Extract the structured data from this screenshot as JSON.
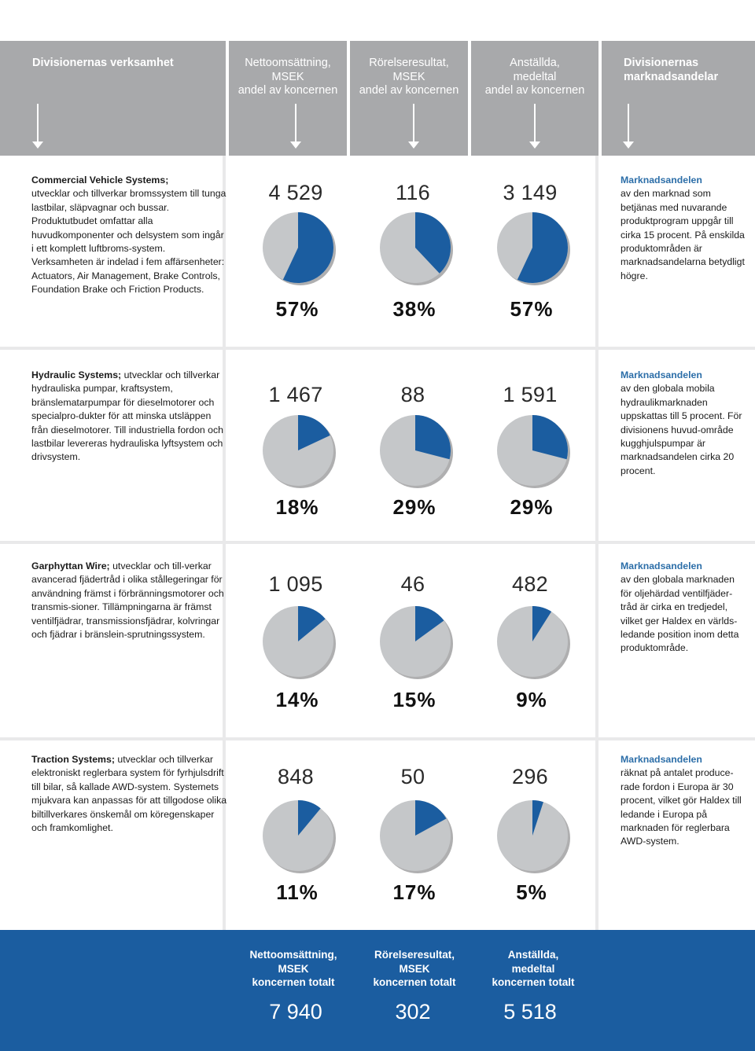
{
  "header": {
    "col1": "Divisionernas verksamhet",
    "col2_l1": "Nettoomsättning,",
    "col2_l2": "MSEK",
    "col2_l3": "andel av koncernen",
    "col3_l1": "Rörelseresultat,",
    "col3_l2": "MSEK",
    "col3_l3": "andel av koncernen",
    "col4_l1": "Anställda,",
    "col4_l2": "medeltal",
    "col4_l3": "andel av koncernen",
    "col5_l1": "Divisionernas",
    "col5_l2": "marknadsandelar"
  },
  "colors": {
    "pie_fill": "#1b5da0",
    "pie_base": "#c5c7c9",
    "header_bg": "#a8a9ab",
    "footer_bg": "#1b5da0",
    "accent_text": "#2c6ea8"
  },
  "divisions": [
    {
      "name": "Commercial Vehicle Systems;",
      "desc": "utvecklar och tillverkar bromssystem till tunga lastbilar, släpvagnar och bussar. Produktutbudet omfattar alla huvudkomponenter och delsystem som ingår i ett komplett luftbroms-system. Verksamheten är indelad i fem affärsenheter: Actuators, Air Management, Brake Controls, Foundation Brake och Friction Products.",
      "values": [
        "4 529",
        "116",
        "3 149"
      ],
      "shares": [
        57,
        38,
        57
      ],
      "share_labels": [
        "57%",
        "38%",
        "57%"
      ],
      "market_head": "Marknadsandelen",
      "market_text": "av den marknad som betjänas med nuvarande produktprogram uppgår till cirka 15 procent. På enskilda produktområden är marknadsandelarna betydligt högre."
    },
    {
      "name": "Hydraulic Systems;",
      "desc": "utvecklar och tillverkar hydrauliska pumpar, kraftsystem, bränslematarpumpar för dieselmotorer och specialpro-dukter för att minska utsläppen från dieselmotorer. Till industriella fordon och lastbilar levereras hydrauliska lyftsystem och drivsystem.",
      "values": [
        "1 467",
        "88",
        "1 591"
      ],
      "shares": [
        18,
        29,
        29
      ],
      "share_labels": [
        "18%",
        "29%",
        "29%"
      ],
      "market_head": "Marknadsandelen",
      "market_text": "av den globala mobila hydraulikmarknaden uppskattas till 5 procent. För divisionens huvud-område kugghjulspumpar är marknadsandelen cirka 20 procent."
    },
    {
      "name": "Garphyttan Wire;",
      "desc": "utvecklar och till-verkar avancerad fjädertråd i olika stållegeringar för användning främst i förbränningsmotorer och transmis-sioner. Tillämpningarna är främst ventilfjädrar, transmissionsfjädrar, kolvringar och fjädrar i bränslein-sprutningssystem.",
      "values": [
        "1 095",
        "46",
        "482"
      ],
      "shares": [
        14,
        15,
        9
      ],
      "share_labels": [
        "14%",
        "15%",
        "9%"
      ],
      "market_head": "Marknadsandelen",
      "market_text": "av den globala marknaden för oljehärdad ventilfjäder-tråd är cirka en tredjedel, vilket ger Haldex en världs-ledande position inom detta produktområde."
    },
    {
      "name": "Traction Systems;",
      "desc": "utvecklar och tillverkar elektroniskt reglerbara system för fyrhjulsdrift till bilar, så kallade AWD-system. Systemets mjukvara kan anpassas för att tillgodose olika biltillverkares önskemål om köregenskaper och framkomlighet.",
      "values": [
        "848",
        "50",
        "296"
      ],
      "shares": [
        11,
        17,
        5
      ],
      "share_labels": [
        "11%",
        "17%",
        "5%"
      ],
      "market_head": "Marknadsandelen",
      "market_text": "räknat på antalet produce-rade fordon i Europa är 30 procent, vilket gör Haldex till ledande i Europa på marknaden för reglerbara AWD-system."
    }
  ],
  "footer": {
    "t1_l1": "Nettoomsättning,",
    "t1_l2": "MSEK",
    "t1_l3": "koncernen totalt",
    "t2_l1": "Rörelseresultat,",
    "t2_l2": "MSEK",
    "t2_l3": "koncernen totalt",
    "t3_l1": "Anställda,",
    "t3_l2": "medeltal",
    "t3_l3": "koncernen totalt",
    "total1": "7 940",
    "total2": "302",
    "total3": "5 518"
  }
}
